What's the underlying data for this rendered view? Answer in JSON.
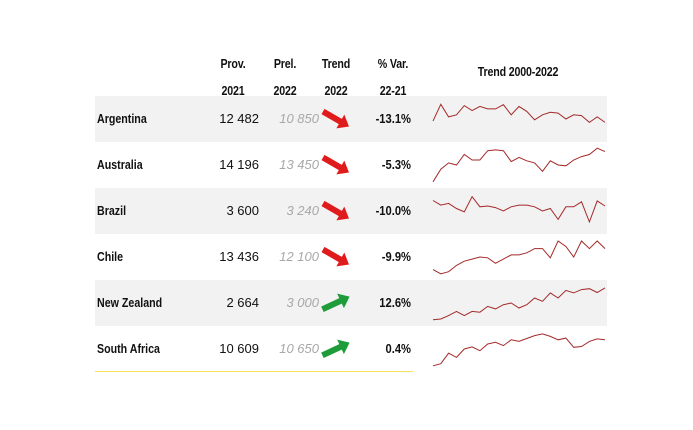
{
  "headers": {
    "prov": [
      "Prov.",
      "2021"
    ],
    "prel": [
      "Prel.",
      "2022"
    ],
    "trend": [
      "Trend",
      "2022"
    ],
    "var": [
      "% Var.",
      "22-21"
    ],
    "spark": "Trend 2000-2022"
  },
  "colors": {
    "down": "#e01b1b",
    "up": "#1f9c3a",
    "spark": "#a42a2a",
    "shade": "#f2f2f2",
    "baseline": "#f2e35a"
  },
  "chart_data": {
    "type": "table",
    "columns": [
      "Prov. 2021",
      "Prel. 2022",
      "Trend 2022",
      "% Var. 22-21",
      "Trend 2000-2022"
    ],
    "rows": [
      {
        "country": "Argentina",
        "prov": "12 482",
        "prel": "10 850",
        "trend": "down",
        "var": "-13.1%",
        "spark": [
          0.45,
          0.85,
          0.55,
          0.6,
          0.82,
          0.7,
          0.8,
          0.74,
          0.74,
          0.84,
          0.6,
          0.8,
          0.68,
          0.48,
          0.6,
          0.66,
          0.64,
          0.5,
          0.6,
          0.58,
          0.42,
          0.55,
          0.42
        ]
      },
      {
        "country": "Australia",
        "prov": "14 196",
        "prel": "13 450",
        "trend": "down",
        "var": "-5.3%",
        "spark": [
          0.1,
          0.4,
          0.55,
          0.5,
          0.75,
          0.62,
          0.62,
          0.84,
          0.86,
          0.84,
          0.58,
          0.68,
          0.6,
          0.55,
          0.35,
          0.6,
          0.5,
          0.48,
          0.62,
          0.7,
          0.75,
          0.9,
          0.82
        ]
      },
      {
        "country": "Brazil",
        "prov": "3 600",
        "prel": "3 240",
        "trend": "down",
        "var": "-10.0%",
        "spark": [
          0.75,
          0.64,
          0.68,
          0.56,
          0.48,
          0.84,
          0.6,
          0.62,
          0.58,
          0.5,
          0.6,
          0.64,
          0.64,
          0.6,
          0.5,
          0.56,
          0.3,
          0.6,
          0.6,
          0.72,
          0.24,
          0.74,
          0.62
        ]
      },
      {
        "country": "Chile",
        "prov": "13 436",
        "prel": "12 100",
        "trend": "down",
        "var": "-9.9%",
        "spark": [
          0.2,
          0.1,
          0.15,
          0.3,
          0.4,
          0.45,
          0.5,
          0.48,
          0.35,
          0.45,
          0.55,
          0.55,
          0.6,
          0.7,
          0.7,
          0.48,
          0.88,
          0.75,
          0.5,
          0.88,
          0.7,
          0.88,
          0.7
        ]
      },
      {
        "country": "New Zealand",
        "prov": "2 664",
        "prel": "3 000",
        "trend": "up",
        "var": "12.6%",
        "spark": [
          0.1,
          0.12,
          0.2,
          0.3,
          0.2,
          0.3,
          0.28,
          0.42,
          0.36,
          0.46,
          0.5,
          0.38,
          0.46,
          0.62,
          0.54,
          0.74,
          0.62,
          0.8,
          0.74,
          0.82,
          0.84,
          0.75,
          0.86
        ]
      },
      {
        "country": "South Africa",
        "prov": "10 609",
        "prel": "10 650",
        "trend": "up",
        "var": "0.4%",
        "spark": [
          0.1,
          0.15,
          0.4,
          0.3,
          0.5,
          0.55,
          0.46,
          0.62,
          0.66,
          0.58,
          0.72,
          0.68,
          0.75,
          0.82,
          0.86,
          0.8,
          0.72,
          0.76,
          0.54,
          0.56,
          0.68,
          0.74,
          0.72
        ]
      }
    ]
  }
}
